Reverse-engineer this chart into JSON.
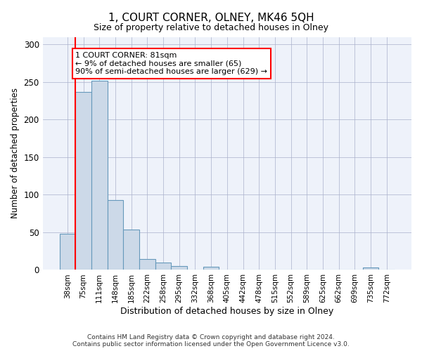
{
  "title": "1, COURT CORNER, OLNEY, MK46 5QH",
  "subtitle": "Size of property relative to detached houses in Olney",
  "xlabel": "Distribution of detached houses by size in Olney",
  "ylabel": "Number of detached properties",
  "bar_color": "#ccd9e8",
  "bar_edge_color": "#6699bb",
  "grid_color": "#aab0cc",
  "background_color": "#eef2fa",
  "categories": [
    "38sqm",
    "75sqm",
    "111sqm",
    "148sqm",
    "185sqm",
    "222sqm",
    "258sqm",
    "295sqm",
    "332sqm",
    "368sqm",
    "405sqm",
    "442sqm",
    "478sqm",
    "515sqm",
    "552sqm",
    "589sqm",
    "625sqm",
    "662sqm",
    "699sqm",
    "735sqm",
    "772sqm"
  ],
  "values": [
    48,
    237,
    252,
    93,
    54,
    14,
    10,
    5,
    0,
    4,
    0,
    0,
    0,
    0,
    0,
    0,
    0,
    0,
    0,
    3,
    0
  ],
  "property_label": "1 COURT CORNER: 81sqm",
  "pct_smaller": "9% of detached houses are smaller (65)",
  "pct_larger": "90% of semi-detached houses are larger (629)",
  "ylim": [
    0,
    310
  ],
  "yticks": [
    0,
    50,
    100,
    150,
    200,
    250,
    300
  ],
  "footer_line1": "Contains HM Land Registry data © Crown copyright and database right 2024.",
  "footer_line2": "Contains public sector information licensed under the Open Government Licence v3.0."
}
